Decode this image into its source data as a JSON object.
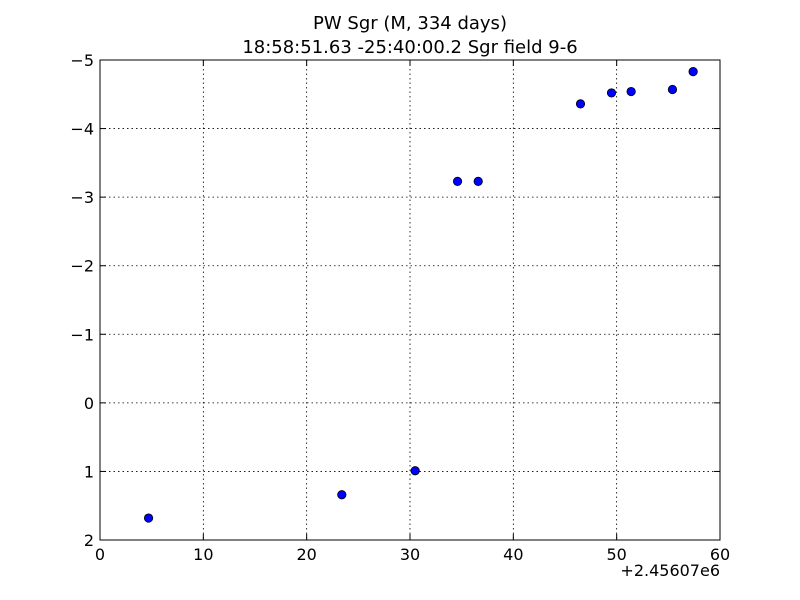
{
  "chart_data": {
    "type": "scatter",
    "title_line1": "PW Sgr  (M, 334 days)",
    "title_line2": "18:58:51.63 -25:40:00.2 Sgr field 9-6",
    "x_offset_label": "+2.45607e6",
    "xlim": [
      0,
      60
    ],
    "ylim": [
      2,
      -5
    ],
    "inverted_y": true,
    "grid": true,
    "x_ticks": [
      {
        "value": 0,
        "label": "0"
      },
      {
        "value": 10,
        "label": "10"
      },
      {
        "value": 20,
        "label": "20"
      },
      {
        "value": 30,
        "label": "30"
      },
      {
        "value": 40,
        "label": "40"
      },
      {
        "value": 50,
        "label": "50"
      },
      {
        "value": 60,
        "label": "60"
      }
    ],
    "y_ticks": [
      {
        "value": -5,
        "label": "−5"
      },
      {
        "value": -4,
        "label": "−4"
      },
      {
        "value": -3,
        "label": "−3"
      },
      {
        "value": -2,
        "label": "−2"
      },
      {
        "value": -1,
        "label": "−1"
      },
      {
        "value": 0,
        "label": "0"
      },
      {
        "value": 1,
        "label": "1"
      },
      {
        "value": 2,
        "label": "2"
      }
    ],
    "marker_color": "#0000ff",
    "points": [
      {
        "x": 4.7,
        "y": 1.68,
        "err": 0.02
      },
      {
        "x": 23.4,
        "y": 1.34,
        "err": 0.02
      },
      {
        "x": 30.5,
        "y": 0.99,
        "err": 0.02
      },
      {
        "x": 34.6,
        "y": -3.23,
        "err": 0.02
      },
      {
        "x": 36.6,
        "y": -3.23,
        "err": 0.02
      },
      {
        "x": 46.5,
        "y": -4.36,
        "err": 0.03
      },
      {
        "x": 49.5,
        "y": -4.52,
        "err": 0.03
      },
      {
        "x": 51.4,
        "y": -4.54,
        "err": 0.04
      },
      {
        "x": 55.4,
        "y": -4.57,
        "err": 0.03
      },
      {
        "x": 57.4,
        "y": -4.83,
        "err": 0.06
      }
    ]
  }
}
